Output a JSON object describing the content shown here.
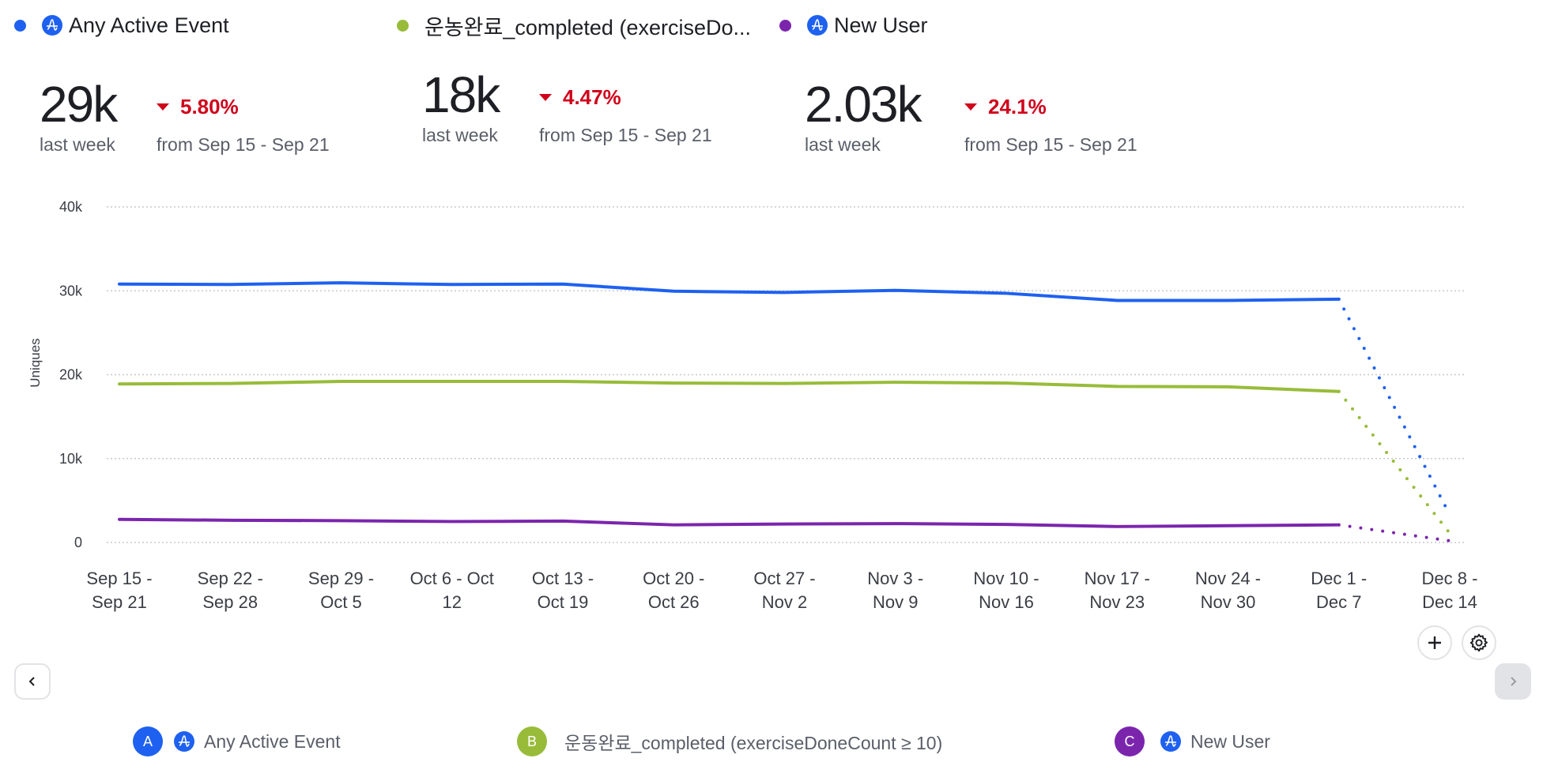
{
  "colors": {
    "series_a": "#1e61f0",
    "series_b": "#98bc3a",
    "series_c": "#7b25ad",
    "negative": "#d0021b",
    "grid": "#c5c8ce"
  },
  "top_legend": [
    {
      "label": "Any Active Event",
      "icon": "amplitude-icon",
      "color": "#1e61f0"
    },
    {
      "label": "운농완료_completed (exerciseDo...",
      "icon": null,
      "color": "#98bc3a"
    },
    {
      "label": "New User",
      "icon": "amplitude-icon",
      "color": "#7b25ad"
    }
  ],
  "kpis": [
    {
      "value": "29k",
      "period": "last week",
      "change": "5.80%",
      "direction": "down",
      "from": "from Sep 15 - Sep 21"
    },
    {
      "value": "18k",
      "period": "last week",
      "change": "4.47%",
      "direction": "down",
      "from": "from Sep 15 - Sep 21"
    },
    {
      "value": "2.03k",
      "period": "last week",
      "change": "24.1%",
      "direction": "down",
      "from": "from Sep 15 - Sep 21"
    }
  ],
  "chart_data": {
    "type": "line",
    "title": "",
    "xlabel": "",
    "ylabel": "Uniques",
    "ylim": [
      0,
      40000
    ],
    "yticks": [
      {
        "value": 0,
        "label": "0"
      },
      {
        "value": 10000,
        "label": "10k"
      },
      {
        "value": 20000,
        "label": "20k"
      },
      {
        "value": 30000,
        "label": "30k"
      },
      {
        "value": 40000,
        "label": "40k"
      }
    ],
    "grid": true,
    "categories": [
      [
        "Sep 15 -",
        "Sep 21"
      ],
      [
        "Sep 22 -",
        "Sep 28"
      ],
      [
        "Sep 29 -",
        "Oct 5"
      ],
      [
        "Oct 6 - Oct",
        "12"
      ],
      [
        "Oct 13 -",
        "Oct 19"
      ],
      [
        "Oct 20 -",
        "Oct 26"
      ],
      [
        "Oct 27 -",
        "Nov 2"
      ],
      [
        "Nov 3 -",
        "Nov 9"
      ],
      [
        "Nov 10 -",
        "Nov 16"
      ],
      [
        "Nov 17 -",
        "Nov 23"
      ],
      [
        "Nov 24 -",
        "Nov 30"
      ],
      [
        "Dec 1 -",
        "Dec 7"
      ],
      [
        "Dec 8 -",
        "Dec 14"
      ]
    ],
    "incomplete_last_period": true,
    "series": [
      {
        "name": "Any Active Event",
        "color": "#1e61f0",
        "values": [
          30800,
          30750,
          30950,
          30750,
          30800,
          29950,
          29800,
          30050,
          29700,
          28850,
          28850,
          29000,
          3300
        ]
      },
      {
        "name": "운동완료_completed (exerciseDoneCount ≥ 10)",
        "color": "#98bc3a",
        "values": [
          18900,
          18950,
          19200,
          19200,
          19200,
          19000,
          18950,
          19100,
          19000,
          18600,
          18550,
          18000,
          1100
        ]
      },
      {
        "name": "New User",
        "color": "#7b25ad",
        "values": [
          2750,
          2650,
          2600,
          2500,
          2550,
          2100,
          2200,
          2250,
          2150,
          1900,
          2000,
          2100,
          200
        ]
      }
    ]
  },
  "buttons": {
    "add": "add-chart-button",
    "settings": "chart-settings-button"
  },
  "bottom_legend": [
    {
      "badge": "A",
      "label": "Any Active Event",
      "color": "#1e61f0",
      "icon": "amplitude-icon"
    },
    {
      "badge": "B",
      "label": "운동완료_completed (exerciseDoneCount ≥ 10)",
      "color": "#98bc3a",
      "icon": null
    },
    {
      "badge": "C",
      "label": "New User",
      "color": "#7b25ad",
      "icon": "amplitude-icon"
    }
  ]
}
